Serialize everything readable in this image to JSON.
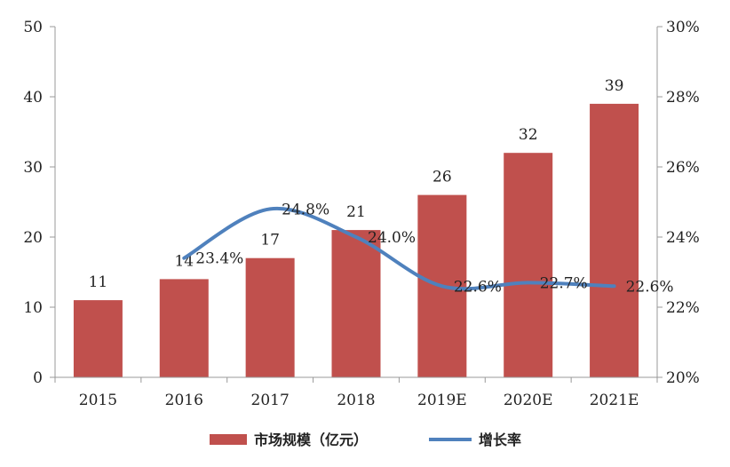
{
  "chart_data": {
    "type": "bar+line",
    "categories": [
      "2015",
      "2016",
      "2017",
      "2018",
      "2019E",
      "2020E",
      "2021E"
    ],
    "series": [
      {
        "name": "市场规模（亿元）",
        "type": "bar",
        "axis": "left",
        "values": [
          11,
          14,
          17,
          21,
          26,
          32,
          39
        ],
        "labels": [
          "11",
          "14",
          "17",
          "21",
          "26",
          "32",
          "39"
        ],
        "color": "#c0504d"
      },
      {
        "name": "增长率",
        "type": "line",
        "axis": "right",
        "values": [
          null,
          23.4,
          24.8,
          24.0,
          22.6,
          22.7,
          22.6
        ],
        "labels": [
          "",
          "23.4%",
          "24.8%",
          "24.0%",
          "22.6%",
          "22.7%",
          "22.6%"
        ],
        "color": "#4f81bd"
      }
    ],
    "y_left": {
      "min": 0,
      "max": 50,
      "ticks": [
        "0",
        "10",
        "20",
        "30",
        "40",
        "50"
      ]
    },
    "y_right": {
      "min": 20,
      "max": 30,
      "ticks": [
        "20%",
        "22%",
        "24%",
        "26%",
        "28%",
        "30%"
      ]
    },
    "grid": false,
    "legend_position": "bottom"
  }
}
